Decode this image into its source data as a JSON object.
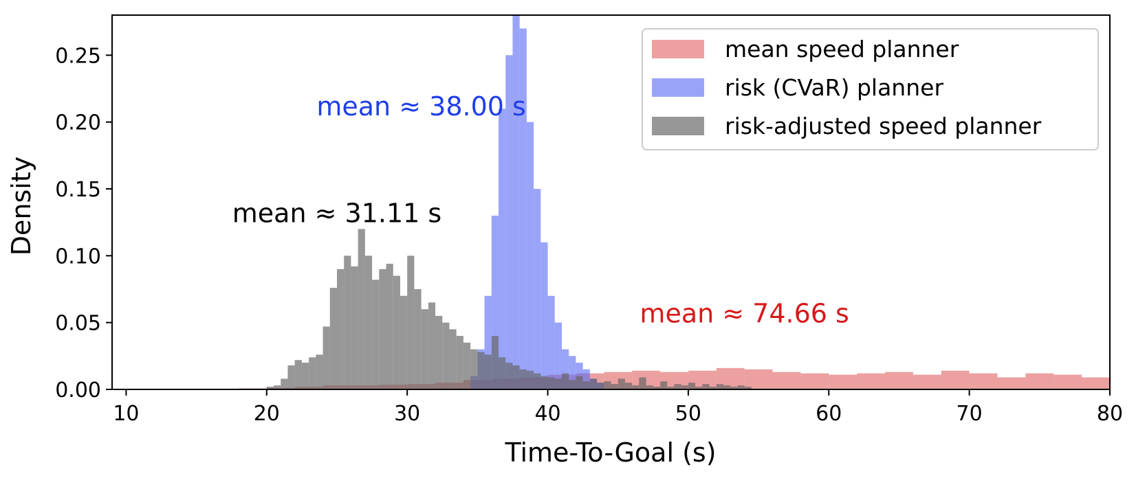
{
  "chart_data": {
    "type": "histogram",
    "xlabel": "Time-To-Goal (s)",
    "ylabel": "Density",
    "xlim": [
      9,
      80
    ],
    "ylim": [
      0,
      0.28
    ],
    "x_ticks": [
      10,
      20,
      30,
      40,
      50,
      60,
      70,
      80
    ],
    "x_tick_labels": [
      "10",
      "20",
      "30",
      "40",
      "50",
      "60",
      "70",
      "80"
    ],
    "y_ticks": [
      0,
      0.05,
      0.1,
      0.15,
      0.2,
      0.25
    ],
    "y_tick_labels": [
      "0.00",
      "0.05",
      "0.10",
      "0.15",
      "0.20",
      "0.25"
    ],
    "grid": false,
    "legend_position": "top-right",
    "series": [
      {
        "name": "mean speed planner",
        "color": "#e06666",
        "opacity": 0.62,
        "bins": [
          [
            18,
            20,
            0.0008
          ],
          [
            20,
            22,
            0.0012
          ],
          [
            22,
            24,
            0.002
          ],
          [
            24,
            26,
            0.003
          ],
          [
            26,
            28,
            0.003
          ],
          [
            28,
            30,
            0.0035
          ],
          [
            30,
            32,
            0.004
          ],
          [
            32,
            34,
            0.005
          ],
          [
            34,
            36,
            0.007
          ],
          [
            36,
            38,
            0.008
          ],
          [
            38,
            40,
            0.009
          ],
          [
            40,
            42,
            0.011
          ],
          [
            42,
            44,
            0.012
          ],
          [
            44,
            46,
            0.013
          ],
          [
            46,
            48,
            0.014
          ],
          [
            48,
            50,
            0.013
          ],
          [
            50,
            52,
            0.014
          ],
          [
            52,
            54,
            0.016
          ],
          [
            54,
            56,
            0.015
          ],
          [
            56,
            58,
            0.013
          ],
          [
            58,
            60,
            0.012
          ],
          [
            60,
            62,
            0.011
          ],
          [
            62,
            64,
            0.012
          ],
          [
            64,
            66,
            0.013
          ],
          [
            66,
            68,
            0.011
          ],
          [
            68,
            70,
            0.014
          ],
          [
            70,
            72,
            0.012
          ],
          [
            72,
            74,
            0.009
          ],
          [
            74,
            76,
            0.012
          ],
          [
            76,
            78,
            0.011
          ],
          [
            78,
            80,
            0.009
          ]
        ]
      },
      {
        "name": "risk (CVaR) planner",
        "color": "#5b6cf5",
        "opacity": 0.62,
        "bins": [
          [
            34.5,
            35.0,
            0.01
          ],
          [
            35.0,
            35.5,
            0.03
          ],
          [
            35.5,
            36.0,
            0.07
          ],
          [
            36.0,
            36.5,
            0.13
          ],
          [
            36.5,
            37.0,
            0.21
          ],
          [
            37.0,
            37.5,
            0.25
          ],
          [
            37.5,
            38.0,
            0.28
          ],
          [
            38.0,
            38.5,
            0.27
          ],
          [
            38.5,
            39.0,
            0.2
          ],
          [
            39.0,
            39.5,
            0.15
          ],
          [
            39.5,
            40.0,
            0.11
          ],
          [
            40.0,
            40.5,
            0.07
          ],
          [
            40.5,
            41.0,
            0.05
          ],
          [
            41.0,
            41.5,
            0.03
          ],
          [
            41.5,
            42.0,
            0.025
          ],
          [
            42.0,
            42.5,
            0.02
          ],
          [
            42.5,
            43.0,
            0.015
          ],
          [
            43.0,
            43.5,
            0.008
          ],
          [
            43.5,
            44.0,
            0.005
          ]
        ]
      },
      {
        "name": "risk-adjusted speed planner",
        "color": "#666666",
        "opacity": 0.68,
        "bins": [
          [
            20,
            20.5,
            0.002
          ],
          [
            20.5,
            21,
            0.003
          ],
          [
            21,
            21.5,
            0.008
          ],
          [
            21.5,
            22,
            0.018
          ],
          [
            22,
            22.5,
            0.022
          ],
          [
            22.5,
            23,
            0.02
          ],
          [
            23,
            23.5,
            0.024
          ],
          [
            23.5,
            24,
            0.026
          ],
          [
            24,
            24.5,
            0.047
          ],
          [
            24.5,
            25,
            0.076
          ],
          [
            25,
            25.5,
            0.09
          ],
          [
            25.5,
            26,
            0.1
          ],
          [
            26,
            26.5,
            0.092
          ],
          [
            26.5,
            27,
            0.12
          ],
          [
            27,
            27.5,
            0.1
          ],
          [
            27.5,
            28,
            0.082
          ],
          [
            28,
            28.5,
            0.09
          ],
          [
            28.5,
            29,
            0.094
          ],
          [
            29,
            29.5,
            0.085
          ],
          [
            29.5,
            30,
            0.07
          ],
          [
            30,
            30.5,
            0.1
          ],
          [
            30.5,
            31,
            0.075
          ],
          [
            31,
            31.5,
            0.06
          ],
          [
            31.5,
            32,
            0.065
          ],
          [
            32,
            32.5,
            0.055
          ],
          [
            32.5,
            33,
            0.05
          ],
          [
            33,
            33.5,
            0.045
          ],
          [
            33.5,
            34,
            0.04
          ],
          [
            34,
            34.5,
            0.035
          ],
          [
            34.5,
            35,
            0.03
          ],
          [
            35,
            35.5,
            0.028
          ],
          [
            35.5,
            36,
            0.026
          ],
          [
            36,
            36.5,
            0.04
          ],
          [
            36.5,
            37,
            0.024
          ],
          [
            37,
            37.5,
            0.02
          ],
          [
            37.5,
            38,
            0.018
          ],
          [
            38,
            38.5,
            0.015
          ],
          [
            38.5,
            39,
            0.014
          ],
          [
            39,
            39.5,
            0.012
          ],
          [
            39.5,
            40,
            0.01
          ],
          [
            40,
            40.5,
            0.009
          ],
          [
            40.5,
            41,
            0.008
          ],
          [
            41,
            41.5,
            0.012
          ],
          [
            41.5,
            42,
            0.007
          ],
          [
            42,
            42.5,
            0.01
          ],
          [
            42.5,
            43,
            0.006
          ],
          [
            43,
            43.5,
            0.008
          ],
          [
            43.5,
            44,
            0.005
          ],
          [
            44,
            44.5,
            0.006
          ],
          [
            44.5,
            45,
            0.004
          ],
          [
            45,
            45.5,
            0.008
          ],
          [
            45.5,
            46,
            0.005
          ],
          [
            46,
            46.5,
            0.003
          ],
          [
            46.5,
            47,
            0.009
          ],
          [
            47,
            47.5,
            0.003
          ],
          [
            47.5,
            48,
            0.002
          ],
          [
            48,
            48.5,
            0.006
          ],
          [
            48.5,
            49,
            0.002
          ],
          [
            49,
            49.5,
            0.004
          ],
          [
            49.5,
            50,
            0.003
          ],
          [
            50,
            50.5,
            0.005
          ],
          [
            50.5,
            51,
            0.002
          ],
          [
            51,
            51.5,
            0.004
          ],
          [
            51.5,
            52,
            0.002
          ],
          [
            52,
            52.5,
            0.004
          ],
          [
            52.5,
            53,
            0.003
          ],
          [
            53,
            53.5,
            0.002
          ],
          [
            53.5,
            54,
            0.003
          ],
          [
            54,
            54.5,
            0.002
          ]
        ]
      }
    ],
    "annotations": [
      {
        "text": "mean ≈ 38.00 s",
        "x": 31.0,
        "y": 0.205,
        "color": "#1f3ee8"
      },
      {
        "text": "mean ≈ 31.11 s",
        "x": 25.0,
        "y": 0.125,
        "color": "#000000"
      },
      {
        "text": "mean ≈ 74.66 s",
        "x": 54.0,
        "y": 0.05,
        "color": "#d61818"
      }
    ]
  }
}
